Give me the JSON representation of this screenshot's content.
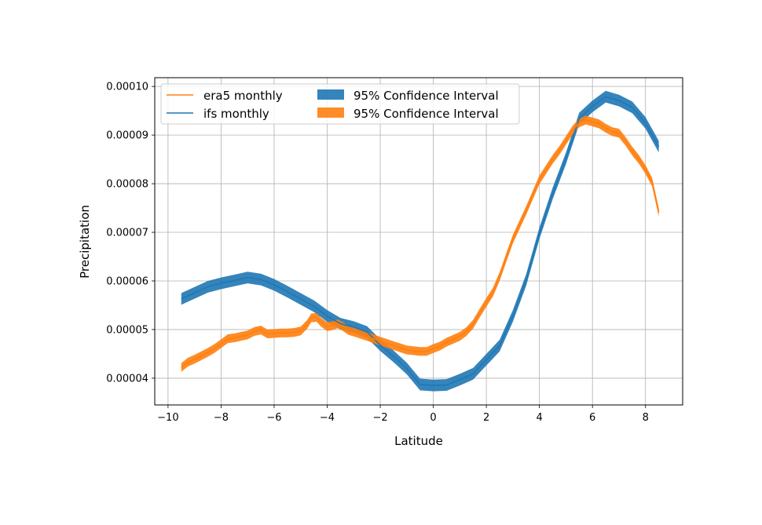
{
  "chart_data": {
    "type": "line",
    "title": "",
    "xlabel": "Latitude",
    "ylabel": "Precipitation",
    "xlim": [
      -10.5,
      9.4
    ],
    "ylim": [
      3.45e-05,
      0.0001018
    ],
    "x_ticks": [
      -10,
      -8,
      -6,
      -4,
      -2,
      0,
      2,
      4,
      6,
      8
    ],
    "x_tick_labels": [
      "−10",
      "−8",
      "−6",
      "−4",
      "−2",
      "0",
      "2",
      "4",
      "6",
      "8"
    ],
    "y_ticks": [
      4e-05,
      5e-05,
      6e-05,
      7e-05,
      8e-05,
      9e-05,
      0.0001
    ],
    "y_tick_labels": [
      "0.00004",
      "0.00005",
      "0.00006",
      "0.00007",
      "0.00008",
      "0.00009",
      "0.00010"
    ],
    "grid": true,
    "legend_position": "top-left",
    "legend": {
      "entries": [
        {
          "label": "era5 monthly",
          "kind": "line",
          "color": "#ff7f0e"
        },
        {
          "label": "ifs monthly",
          "kind": "line",
          "color": "#1f77b4"
        },
        {
          "label": "95% Confidence Interval",
          "kind": "band",
          "color": "#1f77b4"
        },
        {
          "label": "95% Confidence Interval",
          "kind": "band",
          "color": "#ff7f0e"
        }
      ]
    },
    "series": [
      {
        "name": "ifs monthly",
        "color": "#1f77b4",
        "band_halfwidth": 1.2e-06,
        "x": [
          -9.5,
          -8.5,
          -8,
          -7.5,
          -7,
          -6.5,
          -6,
          -5.5,
          -5,
          -4.5,
          -4,
          -3.5,
          -3,
          -2.5,
          -2,
          -1.5,
          -1,
          -0.5,
          0,
          0.5,
          1,
          1.5,
          2,
          2.5,
          3,
          3.5,
          4,
          4.5,
          5,
          5.5,
          6,
          6.5,
          7,
          7.5,
          8,
          8.5
        ],
        "y": [
          5.63e-05,
          5.88e-05,
          5.95e-05,
          6.01e-05,
          6.07e-05,
          6.03e-05,
          5.92e-05,
          5.78e-05,
          5.63e-05,
          5.48e-05,
          5.28e-05,
          5.12e-05,
          5.05e-05,
          4.95e-05,
          4.68e-05,
          4.45e-05,
          4.2e-05,
          3.87e-05,
          3.85e-05,
          3.86e-05,
          3.97e-05,
          4.09e-05,
          4.38e-05,
          4.67e-05,
          5.28e-05,
          6.02e-05,
          6.98e-05,
          7.8e-05,
          8.52e-05,
          9.34e-05,
          9.59e-05,
          9.79e-05,
          9.71e-05,
          9.57e-05,
          9.25e-05,
          8.76e-05
        ]
      },
      {
        "name": "era5 monthly",
        "color": "#ff7f0e",
        "band_halfwidth": 9e-07,
        "x": [
          -9.5,
          -9.25,
          -9,
          -8.75,
          -8.5,
          -8.25,
          -8,
          -7.75,
          -7.5,
          -7.25,
          -7,
          -6.75,
          -6.5,
          -6.25,
          -6,
          -5.75,
          -5.5,
          -5.25,
          -5,
          -4.75,
          -4.6,
          -4.4,
          -4.25,
          -4,
          -3.8,
          -3.6,
          -3.4,
          -3.2,
          -3,
          -2.5,
          -2,
          -1.5,
          -1,
          -0.5,
          -0.25,
          0,
          0.25,
          0.5,
          0.75,
          1,
          1.25,
          1.5,
          1.75,
          2,
          2.25,
          2.5,
          2.75,
          3,
          3.5,
          4,
          4.5,
          4.75,
          5,
          5.25,
          5.5,
          5.75,
          6,
          6.25,
          6.5,
          6.75,
          7,
          7.25,
          7.5,
          7.75,
          8,
          8.25,
          8.5
        ],
        "y": [
          4.22e-05,
          4.33e-05,
          4.39e-05,
          4.46e-05,
          4.53e-05,
          4.61e-05,
          4.71e-05,
          4.81e-05,
          4.83e-05,
          4.86e-05,
          4.89e-05,
          4.96e-05,
          4.99e-05,
          4.91e-05,
          4.92e-05,
          4.93e-05,
          4.93e-05,
          4.94e-05,
          4.97e-05,
          5.11e-05,
          5.24e-05,
          5.25e-05,
          5.16e-05,
          5.06e-05,
          5.08e-05,
          5.12e-05,
          5.06e-05,
          4.98e-05,
          4.95e-05,
          4.86e-05,
          4.76e-05,
          4.67e-05,
          4.58e-05,
          4.55e-05,
          4.55e-05,
          4.61e-05,
          4.66e-05,
          4.74e-05,
          4.8e-05,
          4.86e-05,
          4.96e-05,
          5.11e-05,
          5.34e-05,
          5.56e-05,
          5.77e-05,
          6.09e-05,
          6.48e-05,
          6.86e-05,
          7.45e-05,
          8.08e-05,
          8.5e-05,
          8.68e-05,
          8.89e-05,
          9.1e-05,
          9.25e-05,
          9.31e-05,
          9.27e-05,
          9.23e-05,
          9.14e-05,
          9.07e-05,
          9.04e-05,
          8.87e-05,
          8.67e-05,
          8.5e-05,
          8.29e-05,
          8.03e-05,
          7.41e-05
        ]
      }
    ]
  }
}
